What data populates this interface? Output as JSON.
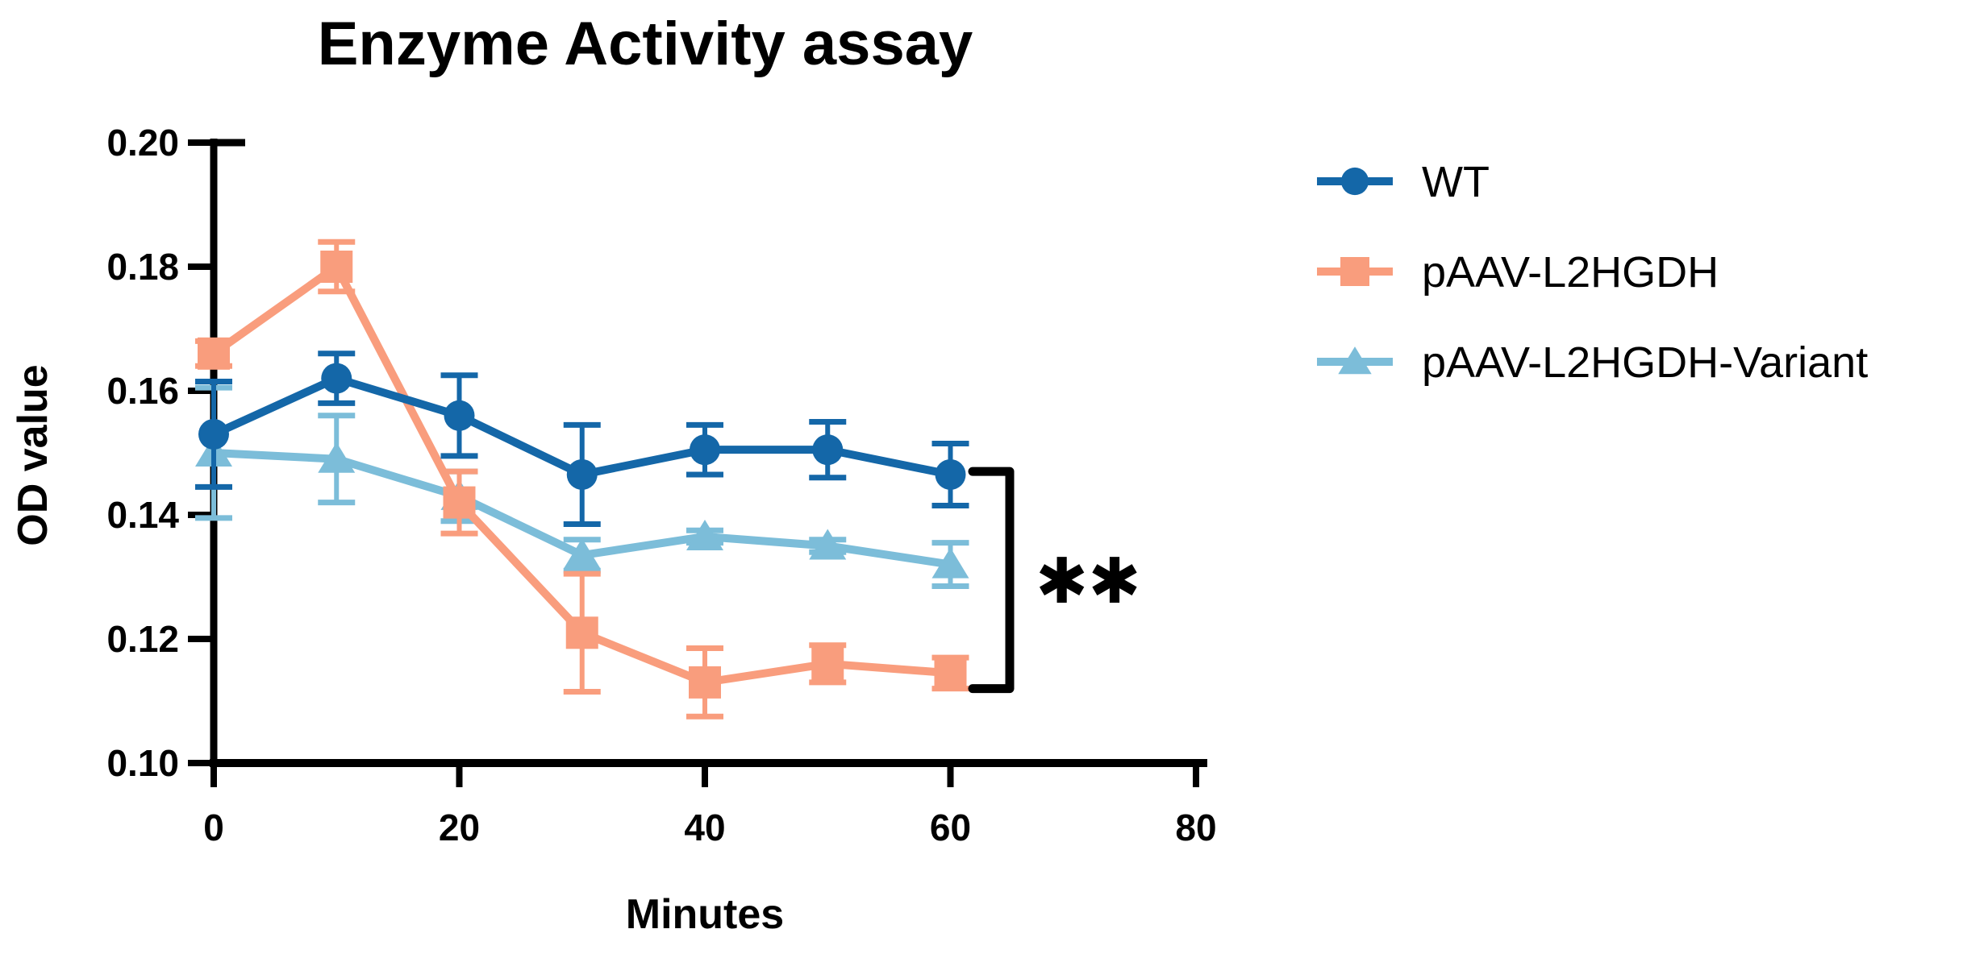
{
  "figure": {
    "background": "#ffffff",
    "axis_color": "#000000",
    "text_color": "#000000"
  },
  "chart_data": {
    "type": "line",
    "title": "Enzyme Activity assay",
    "xlabel": "Minutes",
    "ylabel": "OD value",
    "xlim": [
      0,
      80
    ],
    "ylim": [
      0.1,
      0.2
    ],
    "x_ticks": [
      "0",
      "20",
      "40",
      "60",
      "80"
    ],
    "x_tick_values": [
      0,
      20,
      40,
      60,
      80
    ],
    "y_ticks": [
      "0.20",
      "0.18",
      "0.16",
      "0.14",
      "0.12",
      "0.10"
    ],
    "y_tick_values": [
      0.2,
      0.18,
      0.16,
      0.14,
      0.12,
      0.1
    ],
    "grid": false,
    "legend_position": "right",
    "error_bars": "symmetric, cap-ended",
    "x": [
      0,
      10,
      20,
      30,
      40,
      50,
      60
    ],
    "series": [
      {
        "name": "WT",
        "marker": "circle",
        "color": "#1467a8",
        "values": [
          0.153,
          0.162,
          0.156,
          0.1465,
          0.1505,
          0.1505,
          0.1465
        ],
        "errors": [
          0.0085,
          0.004,
          0.0065,
          0.008,
          0.004,
          0.0045,
          0.005
        ]
      },
      {
        "name": "pAAV-L2HGDH",
        "marker": "square",
        "color": "#f99d7d",
        "values": [
          0.166,
          0.18,
          0.142,
          0.121,
          0.113,
          0.116,
          0.1145
        ],
        "errors": [
          0.002,
          0.004,
          0.005,
          0.0095,
          0.0055,
          0.003,
          0.0025
        ]
      },
      {
        "name": "pAAV-L2HGDH-Variant",
        "marker": "triangle",
        "color": "#7cbdd9",
        "values": [
          0.15,
          0.149,
          0.143,
          0.1335,
          0.1365,
          0.135,
          0.132
        ],
        "errors": [
          0.0105,
          0.007,
          0.004,
          0.0025,
          0.001,
          0.001,
          0.0035
        ]
      }
    ],
    "significance": {
      "label": "**",
      "bracket_span_values": [
        0.112,
        0.147
      ],
      "location": "right of 60 min points, spanning WT down to pAAV-L2HGDH"
    }
  }
}
